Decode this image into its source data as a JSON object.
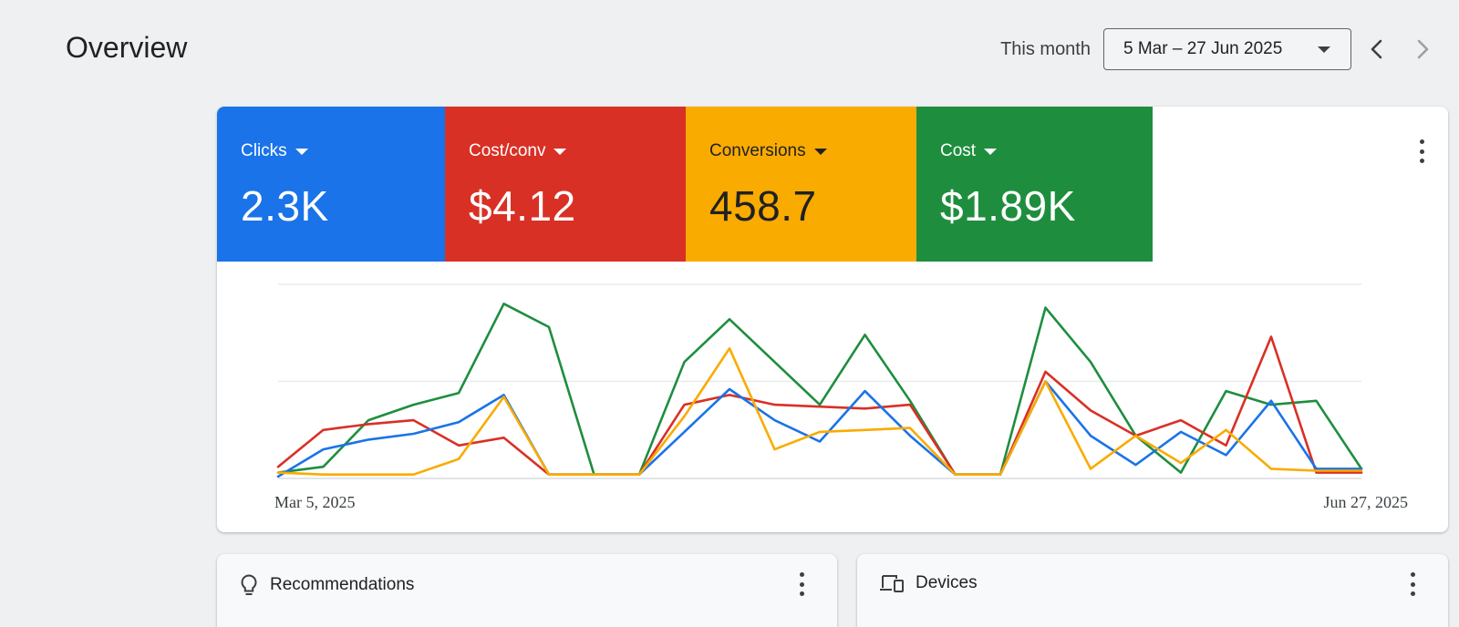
{
  "header": {
    "title": "Overview",
    "period_label": "This month",
    "date_range": "5 Mar – 27 Jun 2025"
  },
  "metrics": [
    {
      "label": "Clicks",
      "value": "2.3K",
      "color": "#1a73e8",
      "text_color": "#ffffff"
    },
    {
      "label": "Cost/conv",
      "value": "$4.12",
      "color": "#d93025",
      "text_color": "#ffffff"
    },
    {
      "label": "Conversions",
      "value": "458.7",
      "color": "#f9ab00",
      "text_color": "#202124"
    },
    {
      "label": "Cost",
      "value": "$1.89K",
      "color": "#1e8e3e",
      "text_color": "#ffffff"
    }
  ],
  "chart_data": {
    "type": "line",
    "x_start_label": "Mar 5, 2025",
    "x_end_label": "Jun 27, 2025",
    "grid": true,
    "ylim": [
      0,
      100
    ],
    "series": [
      {
        "color": "#1e8e3e",
        "values": [
          3,
          6,
          30,
          38,
          44,
          90,
          78,
          2,
          2,
          60,
          82,
          60,
          38,
          74,
          40,
          2,
          2,
          88,
          60,
          22,
          3,
          45,
          38,
          40,
          5
        ]
      },
      {
        "color": "#d93025",
        "values": [
          6,
          25,
          28,
          30,
          17,
          21,
          2,
          2,
          2,
          38,
          43,
          38,
          37,
          36,
          38,
          2,
          2,
          55,
          35,
          22,
          30,
          17,
          73,
          3,
          3
        ]
      },
      {
        "color": "#1a73e8",
        "values": [
          1,
          15,
          20,
          23,
          29,
          43,
          2,
          2,
          2,
          24,
          46,
          30,
          19,
          45,
          22,
          2,
          2,
          50,
          22,
          7,
          24,
          12,
          40,
          5,
          5
        ]
      },
      {
        "color": "#f9ab00",
        "values": [
          3,
          2,
          2,
          2,
          10,
          42,
          2,
          2,
          2,
          32,
          67,
          15,
          24,
          25,
          26,
          2,
          2,
          50,
          5,
          22,
          8,
          25,
          5,
          4,
          4
        ]
      }
    ]
  },
  "cards": [
    {
      "title": "Recommendations",
      "icon": "lightbulb-icon"
    },
    {
      "title": "Devices",
      "icon": "devices-icon"
    }
  ]
}
